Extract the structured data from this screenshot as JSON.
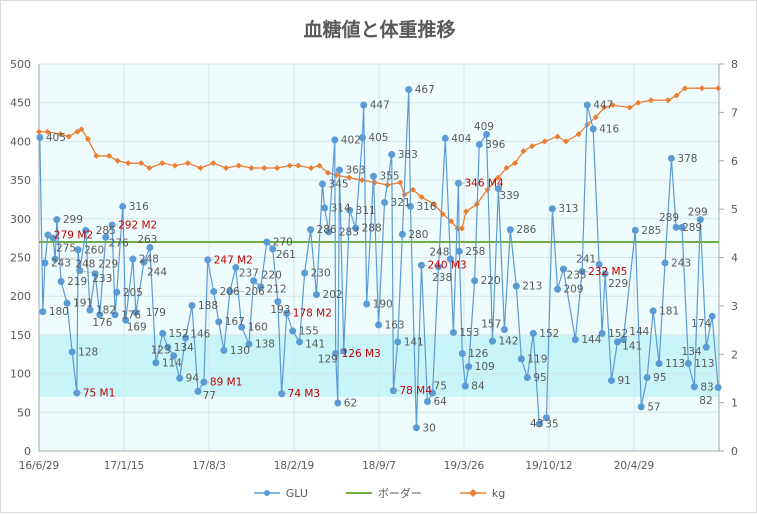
{
  "chart_data": {
    "type": "line",
    "title": "血糖値と体重推移",
    "x_unit": "days since 16/6/29",
    "xlim": [
      0,
      1600
    ],
    "x_ticks": [
      0,
      200,
      400,
      600,
      800,
      1000,
      1200,
      1400
    ],
    "x_tick_labels": [
      "16/6/29",
      "17/1/15",
      "17/8/3",
      "18/2/19",
      "18/9/7",
      "19/3/26",
      "19/10/12",
      "20/4/29"
    ],
    "y_left": {
      "lim": [
        0,
        500
      ],
      "ticks": [
        "0",
        "50",
        "100",
        "150",
        "200",
        "250",
        "300",
        "350",
        "400",
        "450",
        "500"
      ]
    },
    "y_right": {
      "lim": [
        0,
        8
      ],
      "ticks": [
        "0",
        "1",
        "2",
        "3",
        "4",
        "5",
        "6",
        "7",
        "8"
      ]
    },
    "target_band": [
      70,
      150
    ],
    "grid": true,
    "legend_position": "bottom",
    "colors": {
      "GLU": "#5b9bd5",
      "border": "#70ad47",
      "kg": "#ed7d31",
      "memo": "#c00000",
      "band": "#c9f4f8",
      "plot_bg": "#effcfd"
    },
    "legend": [
      "GLU",
      "ボーダー",
      "kg"
    ],
    "border_value": 270,
    "glu": [
      [
        2,
        405,
        ""
      ],
      [
        9,
        180,
        ""
      ],
      [
        14,
        243,
        ""
      ],
      [
        21,
        279,
        "M2"
      ],
      [
        33,
        275,
        ""
      ],
      [
        38,
        248,
        ""
      ],
      [
        42,
        299,
        ""
      ],
      [
        52,
        219,
        ""
      ],
      [
        66,
        191,
        ""
      ],
      [
        78,
        128,
        ""
      ],
      [
        89,
        75,
        "M1"
      ],
      [
        92,
        260,
        ""
      ],
      [
        96,
        233,
        ""
      ],
      [
        110,
        285,
        ""
      ],
      [
        120,
        182,
        ""
      ],
      [
        132,
        229,
        ""
      ],
      [
        143,
        176,
        ""
      ],
      [
        157,
        276,
        ""
      ],
      [
        172,
        292,
        "M2"
      ],
      [
        179,
        176,
        ""
      ],
      [
        183,
        205,
        ""
      ],
      [
        197,
        316,
        ""
      ],
      [
        204,
        169,
        ""
      ],
      [
        221,
        248,
        ""
      ],
      [
        228,
        179,
        ""
      ],
      [
        247,
        244,
        ""
      ],
      [
        261,
        263,
        ""
      ],
      [
        275,
        114,
        ""
      ],
      [
        291,
        152,
        ""
      ],
      [
        303,
        134,
        ""
      ],
      [
        317,
        123,
        ""
      ],
      [
        331,
        94,
        ""
      ],
      [
        345,
        146,
        ""
      ],
      [
        360,
        188,
        ""
      ],
      [
        374,
        77,
        ""
      ],
      [
        388,
        89,
        "M1"
      ],
      [
        397,
        247,
        "M2"
      ],
      [
        411,
        206,
        ""
      ],
      [
        423,
        167,
        ""
      ],
      [
        435,
        130,
        ""
      ],
      [
        449,
        206,
        ""
      ],
      [
        463,
        237,
        ""
      ],
      [
        477,
        160,
        ""
      ],
      [
        494,
        138,
        ""
      ],
      [
        505,
        220,
        ""
      ],
      [
        522,
        212,
        ""
      ],
      [
        536,
        270,
        ""
      ],
      [
        550,
        261,
        ""
      ],
      [
        562,
        193,
        ""
      ],
      [
        571,
        74,
        "M3"
      ],
      [
        583,
        178,
        "M2"
      ],
      [
        597,
        155,
        ""
      ],
      [
        613,
        141,
        ""
      ],
      [
        625,
        230,
        ""
      ],
      [
        639,
        286,
        ""
      ],
      [
        653,
        202,
        ""
      ],
      [
        667,
        345,
        ""
      ],
      [
        672,
        314,
        ""
      ],
      [
        682,
        283,
        ""
      ],
      [
        696,
        402,
        ""
      ],
      [
        698,
        126,
        "M3"
      ],
      [
        703,
        62,
        ""
      ],
      [
        707,
        363,
        ""
      ],
      [
        717,
        129,
        ""
      ],
      [
        731,
        311,
        ""
      ],
      [
        745,
        288,
        ""
      ],
      [
        761,
        405,
        ""
      ],
      [
        764,
        447,
        ""
      ],
      [
        771,
        190,
        ""
      ],
      [
        787,
        355,
        ""
      ],
      [
        799,
        163,
        ""
      ],
      [
        813,
        321,
        ""
      ],
      [
        830,
        383,
        ""
      ],
      [
        834,
        78,
        "M4"
      ],
      [
        844,
        141,
        ""
      ],
      [
        855,
        280,
        ""
      ],
      [
        870,
        467,
        ""
      ],
      [
        874,
        316,
        ""
      ],
      [
        888,
        30,
        ""
      ],
      [
        900,
        240,
        "M3"
      ],
      [
        914,
        64,
        ""
      ],
      [
        926,
        75,
        ""
      ],
      [
        940,
        238,
        ""
      ],
      [
        956,
        404,
        ""
      ],
      [
        968,
        248,
        ""
      ],
      [
        975,
        153,
        ""
      ],
      [
        987,
        346,
        "M4"
      ],
      [
        989,
        258,
        ""
      ],
      [
        996,
        126,
        ""
      ],
      [
        1003,
        84,
        ""
      ],
      [
        1011,
        109,
        ""
      ],
      [
        1025,
        220,
        ""
      ],
      [
        1036,
        396,
        ""
      ],
      [
        1053,
        409,
        ""
      ],
      [
        1067,
        142,
        ""
      ],
      [
        1081,
        339,
        ""
      ],
      [
        1095,
        157,
        ""
      ],
      [
        1109,
        286,
        ""
      ],
      [
        1123,
        213,
        ""
      ],
      [
        1135,
        119,
        ""
      ],
      [
        1149,
        95,
        ""
      ],
      [
        1163,
        152,
        ""
      ],
      [
        1177,
        35,
        ""
      ],
      [
        1194,
        43,
        ""
      ],
      [
        1208,
        313,
        ""
      ],
      [
        1220,
        209,
        ""
      ],
      [
        1234,
        235,
        ""
      ],
      [
        1262,
        144,
        ""
      ],
      [
        1278,
        232,
        "M5"
      ],
      [
        1290,
        447,
        ""
      ],
      [
        1304,
        416,
        ""
      ],
      [
        1318,
        241,
        ""
      ],
      [
        1325,
        152,
        ""
      ],
      [
        1332,
        229,
        ""
      ],
      [
        1347,
        91,
        ""
      ],
      [
        1361,
        141,
        ""
      ],
      [
        1375,
        144,
        ""
      ],
      [
        1403,
        285,
        ""
      ],
      [
        1417,
        57,
        ""
      ],
      [
        1431,
        95,
        ""
      ],
      [
        1445,
        181,
        ""
      ],
      [
        1459,
        113,
        ""
      ],
      [
        1473,
        243,
        ""
      ],
      [
        1488,
        378,
        ""
      ],
      [
        1499,
        289,
        ""
      ],
      [
        1513,
        289,
        ""
      ],
      [
        1528,
        113,
        ""
      ],
      [
        1542,
        83,
        ""
      ],
      [
        1556,
        299,
        ""
      ],
      [
        1570,
        134,
        ""
      ],
      [
        1584,
        174,
        ""
      ],
      [
        1598,
        82,
        ""
      ]
    ],
    "kg": [
      [
        0,
        6.6
      ],
      [
        20,
        6.6
      ],
      [
        50,
        6.55
      ],
      [
        70,
        6.5
      ],
      [
        90,
        6.6
      ],
      [
        100,
        6.65
      ],
      [
        115,
        6.45
      ],
      [
        135,
        6.1
      ],
      [
        165,
        6.1
      ],
      [
        185,
        6.0
      ],
      [
        210,
        5.95
      ],
      [
        240,
        5.95
      ],
      [
        260,
        5.85
      ],
      [
        290,
        5.95
      ],
      [
        320,
        5.9
      ],
      [
        350,
        5.95
      ],
      [
        380,
        5.85
      ],
      [
        410,
        5.95
      ],
      [
        440,
        5.85
      ],
      [
        470,
        5.9
      ],
      [
        500,
        5.85
      ],
      [
        530,
        5.85
      ],
      [
        560,
        5.85
      ],
      [
        590,
        5.9
      ],
      [
        610,
        5.9
      ],
      [
        640,
        5.85
      ],
      [
        660,
        5.9
      ],
      [
        680,
        5.75
      ],
      [
        700,
        5.7
      ],
      [
        730,
        5.65
      ],
      [
        760,
        5.6
      ],
      [
        790,
        5.55
      ],
      [
        820,
        5.5
      ],
      [
        850,
        5.55
      ],
      [
        860,
        5.3
      ],
      [
        880,
        5.4
      ],
      [
        900,
        5.25
      ],
      [
        930,
        5.1
      ],
      [
        950,
        4.9
      ],
      [
        970,
        4.75
      ],
      [
        985,
        4.6
      ],
      [
        995,
        4.6
      ],
      [
        1005,
        4.95
      ],
      [
        1030,
        5.1
      ],
      [
        1055,
        5.4
      ],
      [
        1080,
        5.65
      ],
      [
        1100,
        5.85
      ],
      [
        1120,
        5.95
      ],
      [
        1140,
        6.2
      ],
      [
        1160,
        6.3
      ],
      [
        1190,
        6.4
      ],
      [
        1220,
        6.5
      ],
      [
        1240,
        6.4
      ],
      [
        1270,
        6.55
      ],
      [
        1290,
        6.75
      ],
      [
        1310,
        6.9
      ],
      [
        1330,
        7.1
      ],
      [
        1350,
        7.15
      ],
      [
        1390,
        7.1
      ],
      [
        1410,
        7.2
      ],
      [
        1440,
        7.25
      ],
      [
        1480,
        7.25
      ],
      [
        1500,
        7.35
      ],
      [
        1520,
        7.5
      ],
      [
        1560,
        7.5
      ],
      [
        1598,
        7.5
      ]
    ]
  }
}
